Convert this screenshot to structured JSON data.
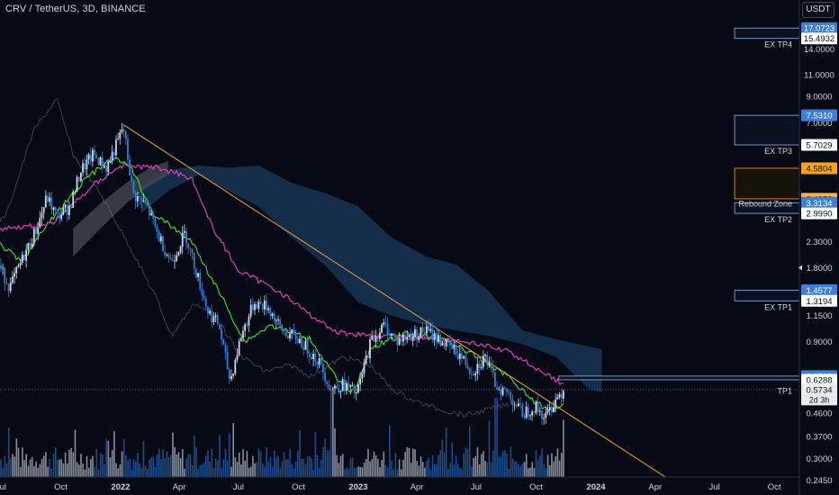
{
  "header": {
    "symbol": "CRV / TetherUS, 3D, BINANCE",
    "currency": "USDT"
  },
  "colors": {
    "background": "#070a14",
    "axis_text": "#d1d4dc",
    "candle_up": "#cfd8e6",
    "candle_down": "#2f7fd6",
    "volume_up": "#b0b8c4",
    "volume_down": "#2462b0",
    "tenkan": "#39e339",
    "kijun": "#d93fb6",
    "cloud": "#1c3a5c",
    "cloud_gray": "#4a4f5a",
    "trendline": "#e8a23a",
    "zone_border": "#8fb6e8",
    "orange": "#f7a21b",
    "blue_label": "#3d7fd9"
  },
  "chart_data": {
    "type": "candlestick",
    "scale": "log",
    "ylim": [
      0.23,
      20
    ],
    "x_axis_ticks": [
      "Jul",
      "Oct",
      "2022",
      "Apr",
      "Jul",
      "Oct",
      "2023",
      "Apr",
      "Jul",
      "Oct",
      "2024",
      "Apr",
      "Jul",
      "Oct"
    ],
    "y_axis_ticks": [
      14.0,
      11.0,
      9.0,
      7.0,
      5.7029,
      3.4376,
      2.999,
      2.3,
      1.8,
      1.15,
      0.9,
      0.6288,
      0.5734,
      0.46,
      0.37,
      0.3,
      0.245
    ],
    "y_axis_tick_labels": [
      "14.0000",
      "11.0000",
      "9.0000",
      "7.0000",
      "5.7029",
      "3.4376",
      "2.9990",
      "2.3000",
      "1.8000",
      "1.1500",
      "0.9000",
      "0.6288",
      "0.5734",
      "0.4600",
      "0.3700",
      "0.3000",
      "0.2450"
    ],
    "current_price": "0.5734",
    "countdown": "2d 3h",
    "price_path": [
      [
        "2021-06-25",
        1.9
      ],
      [
        "2021-07-15",
        1.5
      ],
      [
        "2021-08-05",
        2.0
      ],
      [
        "2021-08-25",
        2.6
      ],
      [
        "2021-09-10",
        3.5
      ],
      [
        "2021-09-25",
        2.9
      ],
      [
        "2021-10-15",
        3.2
      ],
      [
        "2021-11-01",
        4.5
      ],
      [
        "2021-11-20",
        5.2
      ],
      [
        "2021-12-10",
        4.6
      ],
      [
        "2021-12-28",
        5.9
      ],
      [
        "2022-01-05",
        6.8
      ],
      [
        "2022-01-20",
        3.6
      ],
      [
        "2022-02-10",
        3.2
      ],
      [
        "2022-03-01",
        2.4
      ],
      [
        "2022-03-20",
        1.9
      ],
      [
        "2022-04-10",
        2.5
      ],
      [
        "2022-05-01",
        1.6
      ],
      [
        "2022-05-15",
        1.2
      ],
      [
        "2022-06-01",
        1.05
      ],
      [
        "2022-06-18",
        0.62
      ],
      [
        "2022-07-05",
        0.95
      ],
      [
        "2022-07-25",
        1.3
      ],
      [
        "2022-08-15",
        1.25
      ],
      [
        "2022-09-05",
        1.0
      ],
      [
        "2022-10-01",
        0.92
      ],
      [
        "2022-11-01",
        0.75
      ],
      [
        "2022-11-20",
        0.58
      ],
      [
        "2022-12-10",
        0.6
      ],
      [
        "2022-12-30",
        0.55
      ],
      [
        "2023-01-20",
        0.9
      ],
      [
        "2023-02-10",
        1.05
      ],
      [
        "2023-03-01",
        0.9
      ],
      [
        "2023-03-20",
        0.95
      ],
      [
        "2023-04-15",
        1.0
      ],
      [
        "2023-05-10",
        0.9
      ],
      [
        "2023-06-05",
        0.8
      ],
      [
        "2023-06-25",
        0.68
      ],
      [
        "2023-07-15",
        0.78
      ],
      [
        "2023-07-31",
        0.6
      ],
      [
        "2023-08-20",
        0.55
      ],
      [
        "2023-09-10",
        0.46
      ],
      [
        "2023-09-30",
        0.49
      ],
      [
        "2023-10-15",
        0.44
      ],
      [
        "2023-10-30",
        0.52
      ],
      [
        "2023-11-12",
        0.5734
      ]
    ],
    "tenkan_path": [
      [
        "2021-06-25",
        2.3
      ],
      [
        "2021-08-01",
        1.9
      ],
      [
        "2021-09-15",
        2.8
      ],
      [
        "2021-11-10",
        4.2
      ],
      [
        "2021-12-20",
        5.0
      ],
      [
        "2022-01-15",
        4.7
      ],
      [
        "2022-02-20",
        3.0
      ],
      [
        "2022-04-20",
        2.3
      ],
      [
        "2022-06-10",
        1.3
      ],
      [
        "2022-07-10",
        0.9
      ],
      [
        "2022-08-20",
        1.05
      ],
      [
        "2022-10-20",
        0.92
      ],
      [
        "2022-12-01",
        0.62
      ],
      [
        "2022-12-25",
        0.56
      ],
      [
        "2023-01-20",
        0.85
      ],
      [
        "2023-03-15",
        0.97
      ],
      [
        "2023-05-15",
        0.92
      ],
      [
        "2023-07-01",
        0.78
      ],
      [
        "2023-08-20",
        0.65
      ],
      [
        "2023-09-25",
        0.52
      ],
      [
        "2023-10-20",
        0.47
      ],
      [
        "2023-11-12",
        0.5
      ]
    ],
    "kijun_path": [
      [
        "2021-06-25",
        2.6
      ],
      [
        "2021-09-15",
        2.7
      ],
      [
        "2021-11-25",
        4.0
      ],
      [
        "2022-01-01",
        4.7
      ],
      [
        "2022-03-01",
        4.6
      ],
      [
        "2022-04-20",
        4.2
      ],
      [
        "2022-05-20",
        2.7
      ],
      [
        "2022-07-01",
        1.75
      ],
      [
        "2022-09-01",
        1.45
      ],
      [
        "2022-10-20",
        1.15
      ],
      [
        "2022-12-01",
        0.98
      ],
      [
        "2023-02-01",
        0.95
      ],
      [
        "2023-04-15",
        0.93
      ],
      [
        "2023-06-15",
        0.9
      ],
      [
        "2023-08-20",
        0.82
      ],
      [
        "2023-10-10",
        0.68
      ],
      [
        "2023-11-12",
        0.6
      ]
    ],
    "lagging_path": [
      [
        "2021-06-01",
        2.2
      ],
      [
        "2021-07-10",
        3.0
      ],
      [
        "2021-08-20",
        6.5
      ],
      [
        "2021-09-25",
        8.8
      ],
      [
        "2021-10-20",
        5.2
      ],
      [
        "2021-12-01",
        3.6
      ],
      [
        "2022-01-15",
        2.2
      ],
      [
        "2022-02-25",
        1.35
      ],
      [
        "2022-03-20",
        0.95
      ],
      [
        "2022-04-25",
        1.3
      ],
      [
        "2022-06-01",
        1.1
      ],
      [
        "2022-07-01",
        0.8
      ],
      [
        "2022-08-10",
        0.68
      ],
      [
        "2022-09-20",
        0.72
      ],
      [
        "2022-10-20",
        0.65
      ],
      [
        "2022-12-10",
        0.78
      ],
      [
        "2023-01-20",
        0.72
      ],
      [
        "2023-02-20",
        0.58
      ],
      [
        "2023-03-25",
        0.52
      ],
      [
        "2023-05-01",
        0.48
      ],
      [
        "2023-06-15",
        0.45
      ],
      [
        "2023-08-20",
        0.5
      ]
    ],
    "cloud_path": [
      [
        "2022-02-01",
        3.8,
        3.0
      ],
      [
        "2022-03-15",
        4.5,
        3.7
      ],
      [
        "2022-05-01",
        4.7,
        4.3
      ],
      [
        "2022-06-15",
        4.6,
        3.7
      ],
      [
        "2022-08-01",
        4.7,
        3.2
      ],
      [
        "2022-09-20",
        4.0,
        2.4
      ],
      [
        "2022-11-15",
        3.6,
        1.8
      ],
      [
        "2023-01-01",
        3.2,
        1.3
      ],
      [
        "2023-02-20",
        2.4,
        1.15
      ],
      [
        "2023-04-15",
        2.0,
        1.05
      ],
      [
        "2023-06-01",
        1.85,
        1.0
      ],
      [
        "2023-07-20",
        1.45,
        0.95
      ],
      [
        "2023-09-10",
        1.0,
        0.88
      ],
      [
        "2023-11-01",
        0.92,
        0.78
      ],
      [
        "2023-12-20",
        0.86,
        0.58
      ],
      [
        "2024-01-10",
        0.84,
        0.56
      ]
    ],
    "gray_cloud_path": [
      [
        "2021-10-20",
        2.6,
        2.0
      ],
      [
        "2021-12-01",
        3.3,
        2.6
      ],
      [
        "2022-01-10",
        4.0,
        3.3
      ],
      [
        "2022-02-15",
        4.6,
        3.9
      ],
      [
        "2022-03-15",
        4.9,
        4.3
      ]
    ],
    "trendline": {
      "start": [
        "2022-01-05",
        6.9
      ],
      "end": [
        "2024-05-10",
        0.23
      ]
    },
    "zones": [
      {
        "name": "ex-tp4",
        "top": 17.0723,
        "bottom": 15.4932,
        "start": "2024-08-01",
        "label": "EX TP4",
        "label_price": 15.4932,
        "top_label": "17.0723",
        "bottom_label": "15.4932"
      },
      {
        "name": "ex-tp3",
        "top": 7.531,
        "bottom": 5.7029,
        "start": "2024-08-01",
        "label": "EX TP3",
        "label_price": 5.7029,
        "top_label": "7.5310",
        "bottom_label": "5.7029"
      },
      {
        "name": "rebound-zone",
        "top": 4.5804,
        "bottom": 3.4376,
        "start": "2024-08-01",
        "label": "",
        "label_price": 4.5804,
        "top_label": "4.5804",
        "bottom_label": "3.4376",
        "orange": true
      },
      {
        "name": "ex-tp2",
        "top": 3.3134,
        "bottom": 2.999,
        "start": "2024-08-01",
        "label": "EX TP2",
        "label_price": 2.999,
        "top_label": "3.3134",
        "bottom_label": "2.9990",
        "mid_label": "Rebound Zone"
      },
      {
        "name": "ex-tp1",
        "top": 1.4577,
        "bottom": 1.3194,
        "start": "2024-08-01",
        "label": "EX TP1",
        "label_price": 1.3194,
        "top_label": "1.4577",
        "bottom_label": "1.3194"
      },
      {
        "name": "tp1",
        "top": 0.6512,
        "bottom": 0.6288,
        "start": "2023-11-05",
        "label": "TP1",
        "label_price": 0.6,
        "top_label": "0.6512",
        "bottom_label": "0.6288"
      }
    ],
    "extra_price_labels": {
      "1.8000": "1.8000",
      "0.5734": "0.5734"
    }
  }
}
